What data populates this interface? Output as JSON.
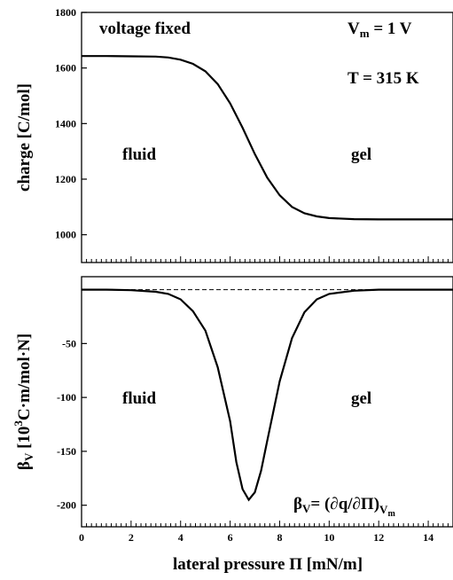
{
  "chart_data": [
    {
      "type": "line",
      "panel": "top",
      "xlabel": "",
      "ylabel": "charge [C/mol]",
      "xlim": [
        0,
        15
      ],
      "ylim": [
        900,
        1800
      ],
      "yticks": [
        1000,
        1200,
        1400,
        1600,
        1800
      ],
      "grid": false,
      "series": [
        {
          "color": "#000000",
          "x": [
            0,
            1,
            2,
            3,
            3.5,
            4,
            4.5,
            5,
            5.5,
            6,
            6.5,
            7,
            7.5,
            8,
            8.5,
            9,
            9.5,
            10,
            11,
            12,
            13,
            15
          ],
          "y": [
            1643,
            1643,
            1642,
            1641,
            1638,
            1630,
            1615,
            1588,
            1542,
            1473,
            1385,
            1290,
            1205,
            1142,
            1100,
            1077,
            1066,
            1060,
            1056,
            1055,
            1055,
            1055
          ]
        }
      ],
      "annotations": {
        "top_left": "voltage fixed",
        "vm_base": "V",
        "vm_sub": "m",
        "vm_rest": " = 1 V",
        "temperature": "T = 315 K",
        "phase_left": "fluid",
        "phase_right": "gel"
      }
    },
    {
      "type": "line",
      "panel": "bottom",
      "xlabel": "lateral pressure Π [mN/m]",
      "ylabel_base": "β",
      "ylabel_sub": "V",
      "ylabel_open": " [10",
      "ylabel_sup": "3",
      "ylabel_rest": "C·m/mol·N]",
      "xlim": [
        0,
        15
      ],
      "ylim": [
        -220,
        12
      ],
      "xticks": [
        0,
        2,
        4,
        6,
        8,
        10,
        12,
        14
      ],
      "yticks": [
        -200,
        -150,
        -100,
        -50
      ],
      "grid": false,
      "reference_line": {
        "y": 0,
        "style": "dashed"
      },
      "series": [
        {
          "color": "#000000",
          "x": [
            0,
            1,
            2,
            3,
            3.5,
            4,
            4.5,
            5,
            5.5,
            6,
            6.25,
            6.5,
            6.75,
            7,
            7.25,
            7.5,
            8,
            8.5,
            9,
            9.5,
            10,
            11,
            12,
            13,
            15
          ],
          "y": [
            0,
            0,
            -0.5,
            -2,
            -4,
            -9,
            -20,
            -38,
            -72,
            -122,
            -160,
            -185,
            -195,
            -188,
            -168,
            -140,
            -85,
            -45,
            -21,
            -9,
            -4,
            -1,
            0,
            0,
            0
          ]
        }
      ],
      "annotations": {
        "phase_left": "fluid",
        "phase_right": "gel",
        "formula_base": "β",
        "formula_sub": "V",
        "formula_mid": "= (∂q/∂Π)",
        "formula_sub2_base": "V",
        "formula_sub2_sub": "m"
      }
    }
  ]
}
